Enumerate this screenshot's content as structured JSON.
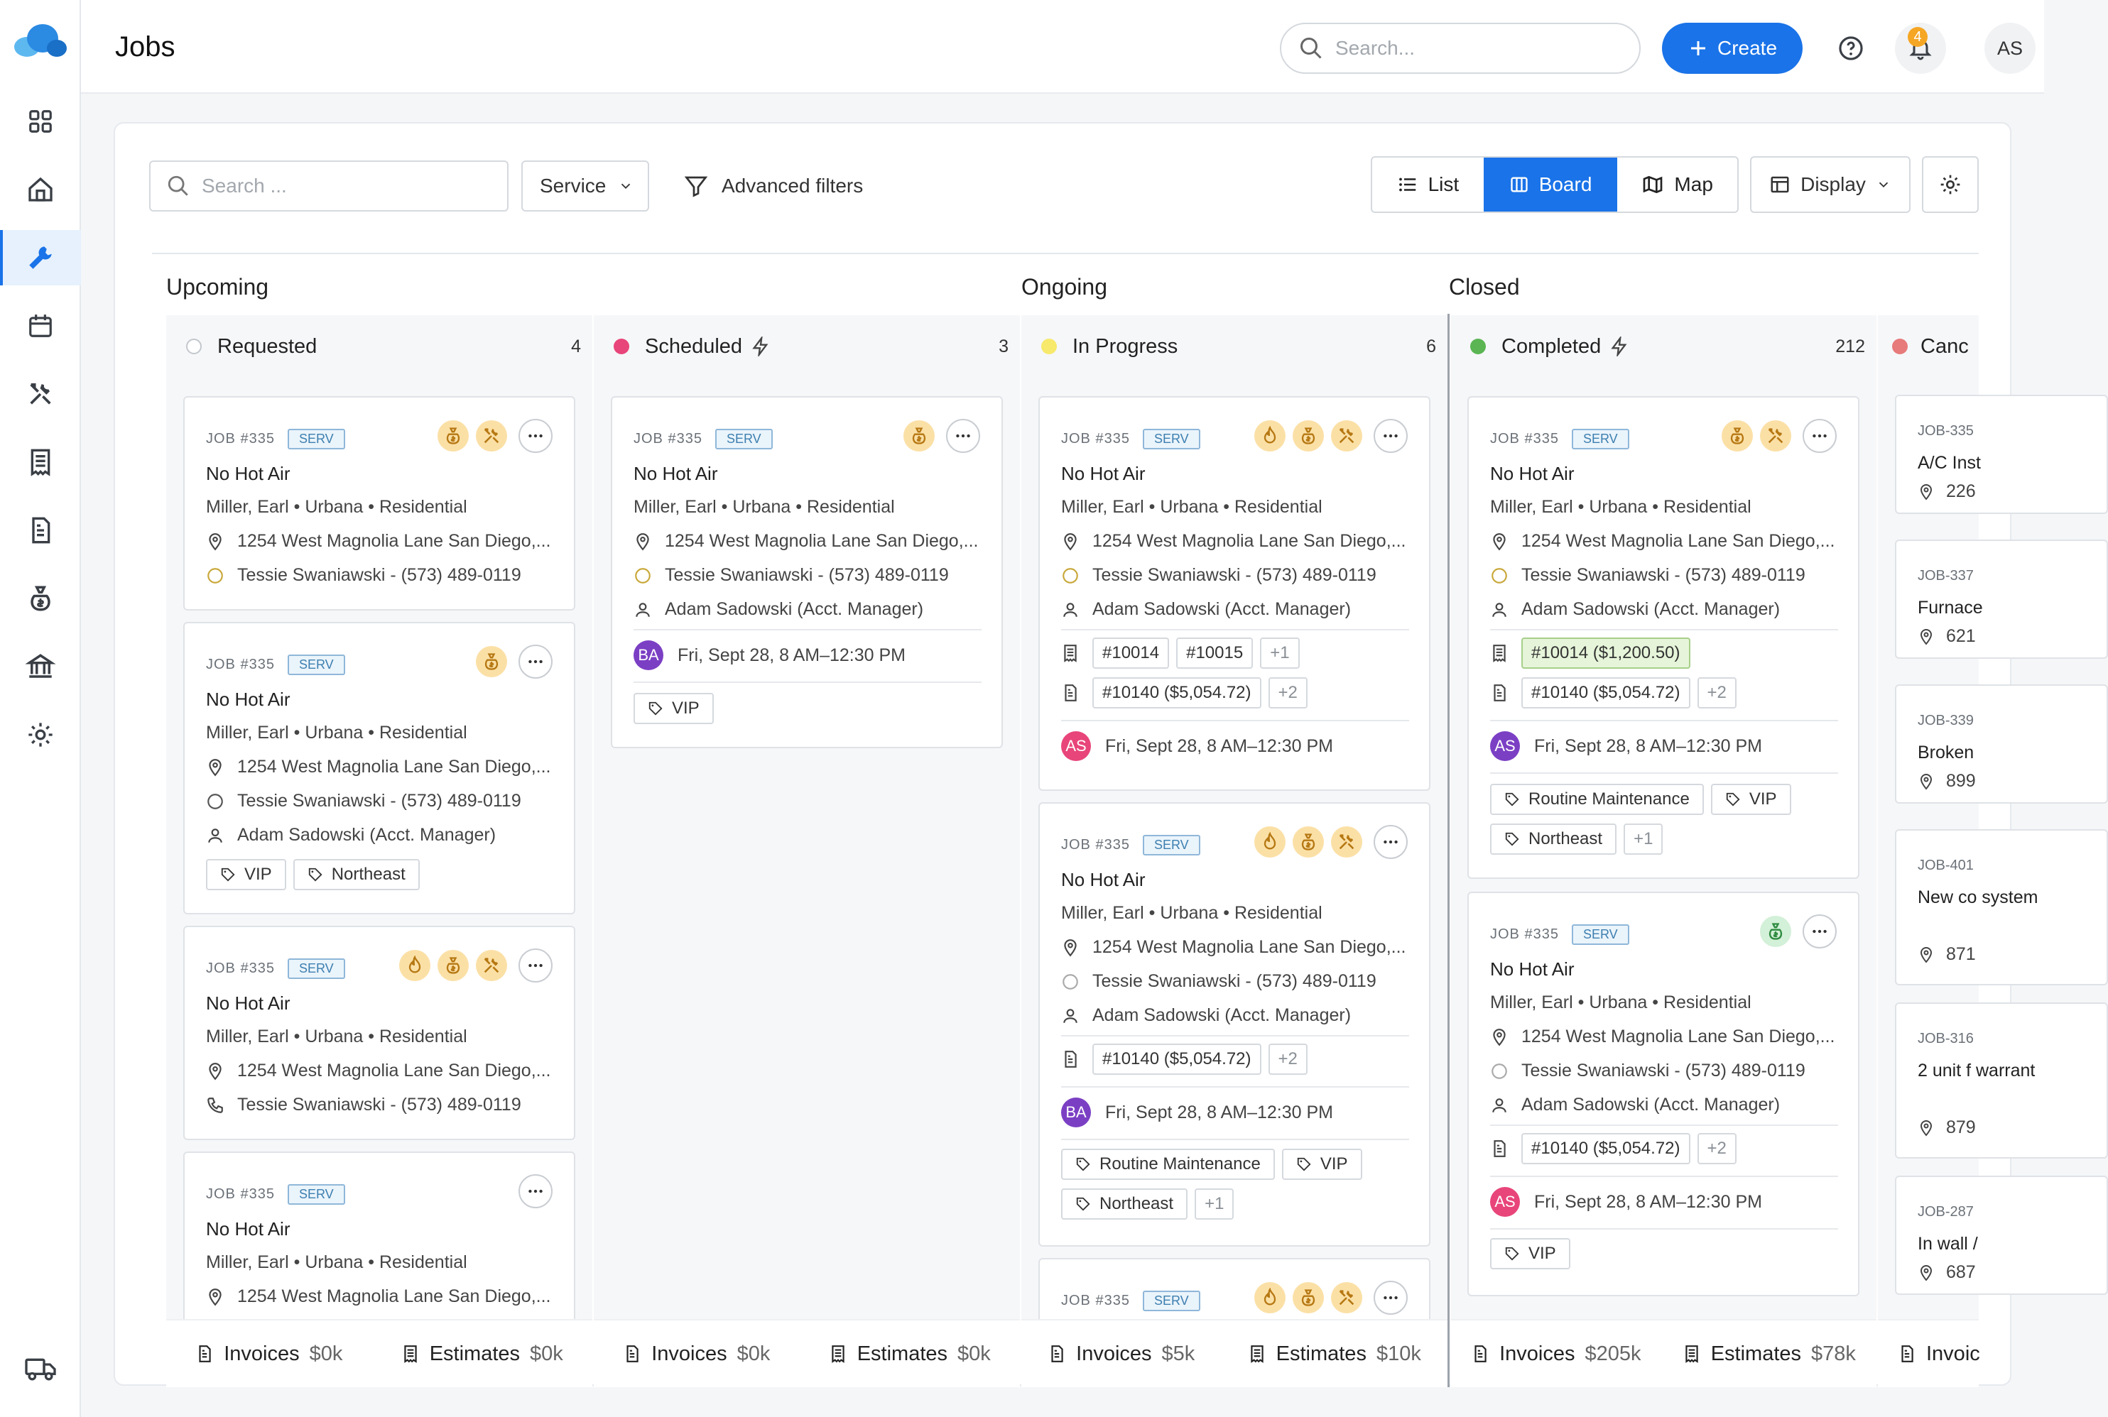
{
  "app": {
    "title": "Jobs",
    "global_search_placeholder": "Search...",
    "create_label": "Create",
    "notifications_count": "4",
    "user_initials": "AS"
  },
  "toolbar": {
    "search_placeholder": "Search ...",
    "service_label": "Service",
    "advanced_filters": "Advanced filters",
    "view_list": "List",
    "view_board": "Board",
    "view_map": "Map",
    "display_label": "Display"
  },
  "groups": {
    "upcoming": "Upcoming",
    "ongoing": "Ongoing",
    "closed": "Closed"
  },
  "columns": [
    {
      "name": "Requested",
      "count": "4",
      "invoices_label": "Invoices",
      "invoices_value": "$0k",
      "estimates_label": "Estimates",
      "estimates_value": "$0k"
    },
    {
      "name": "Scheduled",
      "count": "3",
      "invoices_label": "Invoices",
      "invoices_value": "$0k",
      "estimates_label": "Estimates",
      "estimates_value": "$0k"
    },
    {
      "name": "In Progress",
      "count": "6",
      "invoices_label": "Invoices",
      "invoices_value": "$5k",
      "estimates_label": "Estimates",
      "estimates_value": "$10k"
    },
    {
      "name": "Completed",
      "count": "212",
      "invoices_label": "Invoices",
      "invoices_value": "$205k",
      "estimates_label": "Estimates",
      "estimates_value": "$78k"
    },
    {
      "name": "Canc",
      "invoices_label": "Invoic"
    }
  ],
  "job": {
    "number": "JOB #335",
    "badge": "SERV",
    "title": "No Hot Air",
    "customer": "Miller, Earl • Urbana • Residential",
    "address": "1254 West Magnolia Lane San Diego,...",
    "contact": "Tessie Swaniawski - (573) 489-0119",
    "manager": "Adam Sadowski (Acct. Manager)",
    "schedule": "Fri, Sept 28, 8 AM–12:30 PM"
  },
  "chips": {
    "inv1": "#10014",
    "inv2": "#10015",
    "plus1": "+1",
    "plus2": "+2",
    "est": "#10140 ($5,054.72)",
    "inv_paid": "#10014 ($1,200.50)"
  },
  "tags": {
    "vip": "VIP",
    "northeast": "Northeast",
    "routine": "Routine Maintenance"
  },
  "avatars": {
    "ba": "BA",
    "as": "AS"
  },
  "cancelled": [
    {
      "num": "JOB-335",
      "title": "A/C Inst",
      "amount": "226"
    },
    {
      "num": "JOB-337",
      "title": "Furnace",
      "amount": "621"
    },
    {
      "num": "JOB-339",
      "title": "Broken",
      "amount": "899"
    },
    {
      "num": "JOB-401",
      "title": "New co system",
      "amount": "871"
    },
    {
      "num": "JOB-316",
      "title": "2 unit f warrant",
      "amount": "879"
    },
    {
      "num": "JOB-287",
      "title": "In wall /",
      "amount": "687"
    }
  ],
  "colors": {
    "accent": "#1a73e8",
    "scheduled": "#e8457a",
    "in_progress": "#f7e96b",
    "completed": "#5ab552",
    "cancelled": "#e77a7a"
  }
}
